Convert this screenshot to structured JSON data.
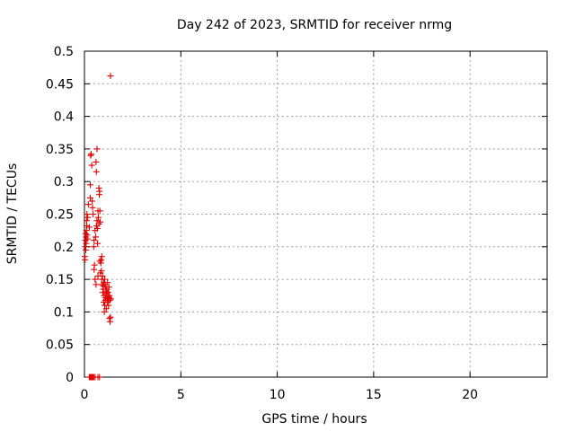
{
  "chart_data": {
    "type": "scatter",
    "title": "Day 242 of 2023, SRMTID for receiver nrmg",
    "xlabel": "GPS time / hours",
    "ylabel": "SRMTID / TECUs",
    "xlim": [
      0,
      24
    ],
    "ylim": [
      0,
      0.5
    ],
    "x_ticks": [
      0,
      5,
      10,
      15,
      20
    ],
    "x_tick_labels": [
      "0",
      "5",
      "10",
      "15",
      "20"
    ],
    "y_ticks": [
      0,
      0.05,
      0.1,
      0.15,
      0.2,
      0.25,
      0.3,
      0.35,
      0.4,
      0.45,
      0.5
    ],
    "y_tick_labels": [
      "0",
      "0.05",
      "0.1",
      "0.15",
      "0.2",
      "0.25",
      "0.3",
      "0.35",
      "0.4",
      "0.45",
      "0.5"
    ],
    "grid": true,
    "marker": "plus",
    "color": "#e00000",
    "series": [
      {
        "name": "SRMTID",
        "points": [
          [
            0.02,
            0.185
          ],
          [
            0.03,
            0.18
          ],
          [
            0.04,
            0.2
          ],
          [
            0.05,
            0.21
          ],
          [
            0.06,
            0.22
          ],
          [
            0.07,
            0.195
          ],
          [
            0.08,
            0.215
          ],
          [
            0.09,
            0.205
          ],
          [
            0.1,
            0.225
          ],
          [
            0.11,
            0.24
          ],
          [
            0.12,
            0.232
          ],
          [
            0.13,
            0.25
          ],
          [
            0.14,
            0.218
          ],
          [
            0.15,
            0.212
          ],
          [
            0.17,
            0.245
          ],
          [
            0.2,
            0.265
          ],
          [
            0.25,
            0.23
          ],
          [
            0.3,
            0.275
          ],
          [
            0.3,
            0.295
          ],
          [
            0.32,
            0.34
          ],
          [
            0.35,
            0.342
          ],
          [
            0.38,
            0.325
          ],
          [
            0.4,
            0.27
          ],
          [
            0.42,
            0.26
          ],
          [
            0.45,
            0.25
          ],
          [
            0.48,
            0.2
          ],
          [
            0.5,
            0.21
          ],
          [
            0.5,
            0.165
          ],
          [
            0.52,
            0.172
          ],
          [
            0.55,
            0.225
          ],
          [
            0.55,
            0.15
          ],
          [
            0.58,
            0.215
          ],
          [
            0.6,
            0.33
          ],
          [
            0.6,
            0.142
          ],
          [
            0.62,
            0.315
          ],
          [
            0.63,
            0.232
          ],
          [
            0.65,
            0.35
          ],
          [
            0.65,
            0.24
          ],
          [
            0.67,
            0.228
          ],
          [
            0.68,
            0.205
          ],
          [
            0.7,
            0.255
          ],
          [
            0.7,
            0.155
          ],
          [
            0.72,
            0.245
          ],
          [
            0.75,
            0.29
          ],
          [
            0.75,
            0.235
          ],
          [
            0.77,
            0.28
          ],
          [
            0.78,
            0.285
          ],
          [
            0.8,
            0.255
          ],
          [
            0.8,
            0.178
          ],
          [
            0.82,
            0.238
          ],
          [
            0.83,
            0.16
          ],
          [
            0.85,
            0.175
          ],
          [
            0.87,
            0.18
          ],
          [
            0.88,
            0.163
          ],
          [
            0.9,
            0.185
          ],
          [
            0.9,
            0.15
          ],
          [
            0.92,
            0.142
          ],
          [
            0.94,
            0.155
          ],
          [
            0.95,
            0.13
          ],
          [
            0.97,
            0.14
          ],
          [
            0.98,
            0.135
          ],
          [
            1.0,
            0.145
          ],
          [
            1.0,
            0.115
          ],
          [
            1.02,
            0.125
          ],
          [
            1.03,
            0.1
          ],
          [
            1.05,
            0.15
          ],
          [
            1.05,
            0.11
          ],
          [
            1.07,
            0.142
          ],
          [
            1.08,
            0.118
          ],
          [
            1.1,
            0.138
          ],
          [
            1.1,
            0.122
          ],
          [
            1.12,
            0.128
          ],
          [
            1.13,
            0.105
          ],
          [
            1.15,
            0.135
          ],
          [
            1.15,
            0.132
          ],
          [
            1.17,
            0.12
          ],
          [
            1.18,
            0.115
          ],
          [
            1.2,
            0.125
          ],
          [
            1.2,
            0.145
          ],
          [
            1.22,
            0.13
          ],
          [
            1.23,
            0.118
          ],
          [
            1.25,
            0.12
          ],
          [
            1.25,
            0.11
          ],
          [
            1.27,
            0.138
          ],
          [
            1.28,
            0.122
          ],
          [
            1.3,
            0.09
          ],
          [
            1.3,
            0.125
          ],
          [
            1.32,
            0.118
          ],
          [
            1.33,
            0.085
          ],
          [
            1.35,
            0.092
          ],
          [
            1.37,
            0.12
          ],
          [
            1.35,
            0.462
          ],
          [
            0.25,
            0.0
          ],
          [
            0.3,
            0.0
          ],
          [
            0.33,
            0.0
          ],
          [
            0.36,
            0.0
          ],
          [
            0.4,
            0.0
          ],
          [
            0.44,
            0.0
          ],
          [
            0.48,
            0.0
          ],
          [
            0.55,
            0.0
          ],
          [
            0.7,
            0.0
          ],
          [
            0.78,
            0.0
          ]
        ]
      }
    ]
  }
}
